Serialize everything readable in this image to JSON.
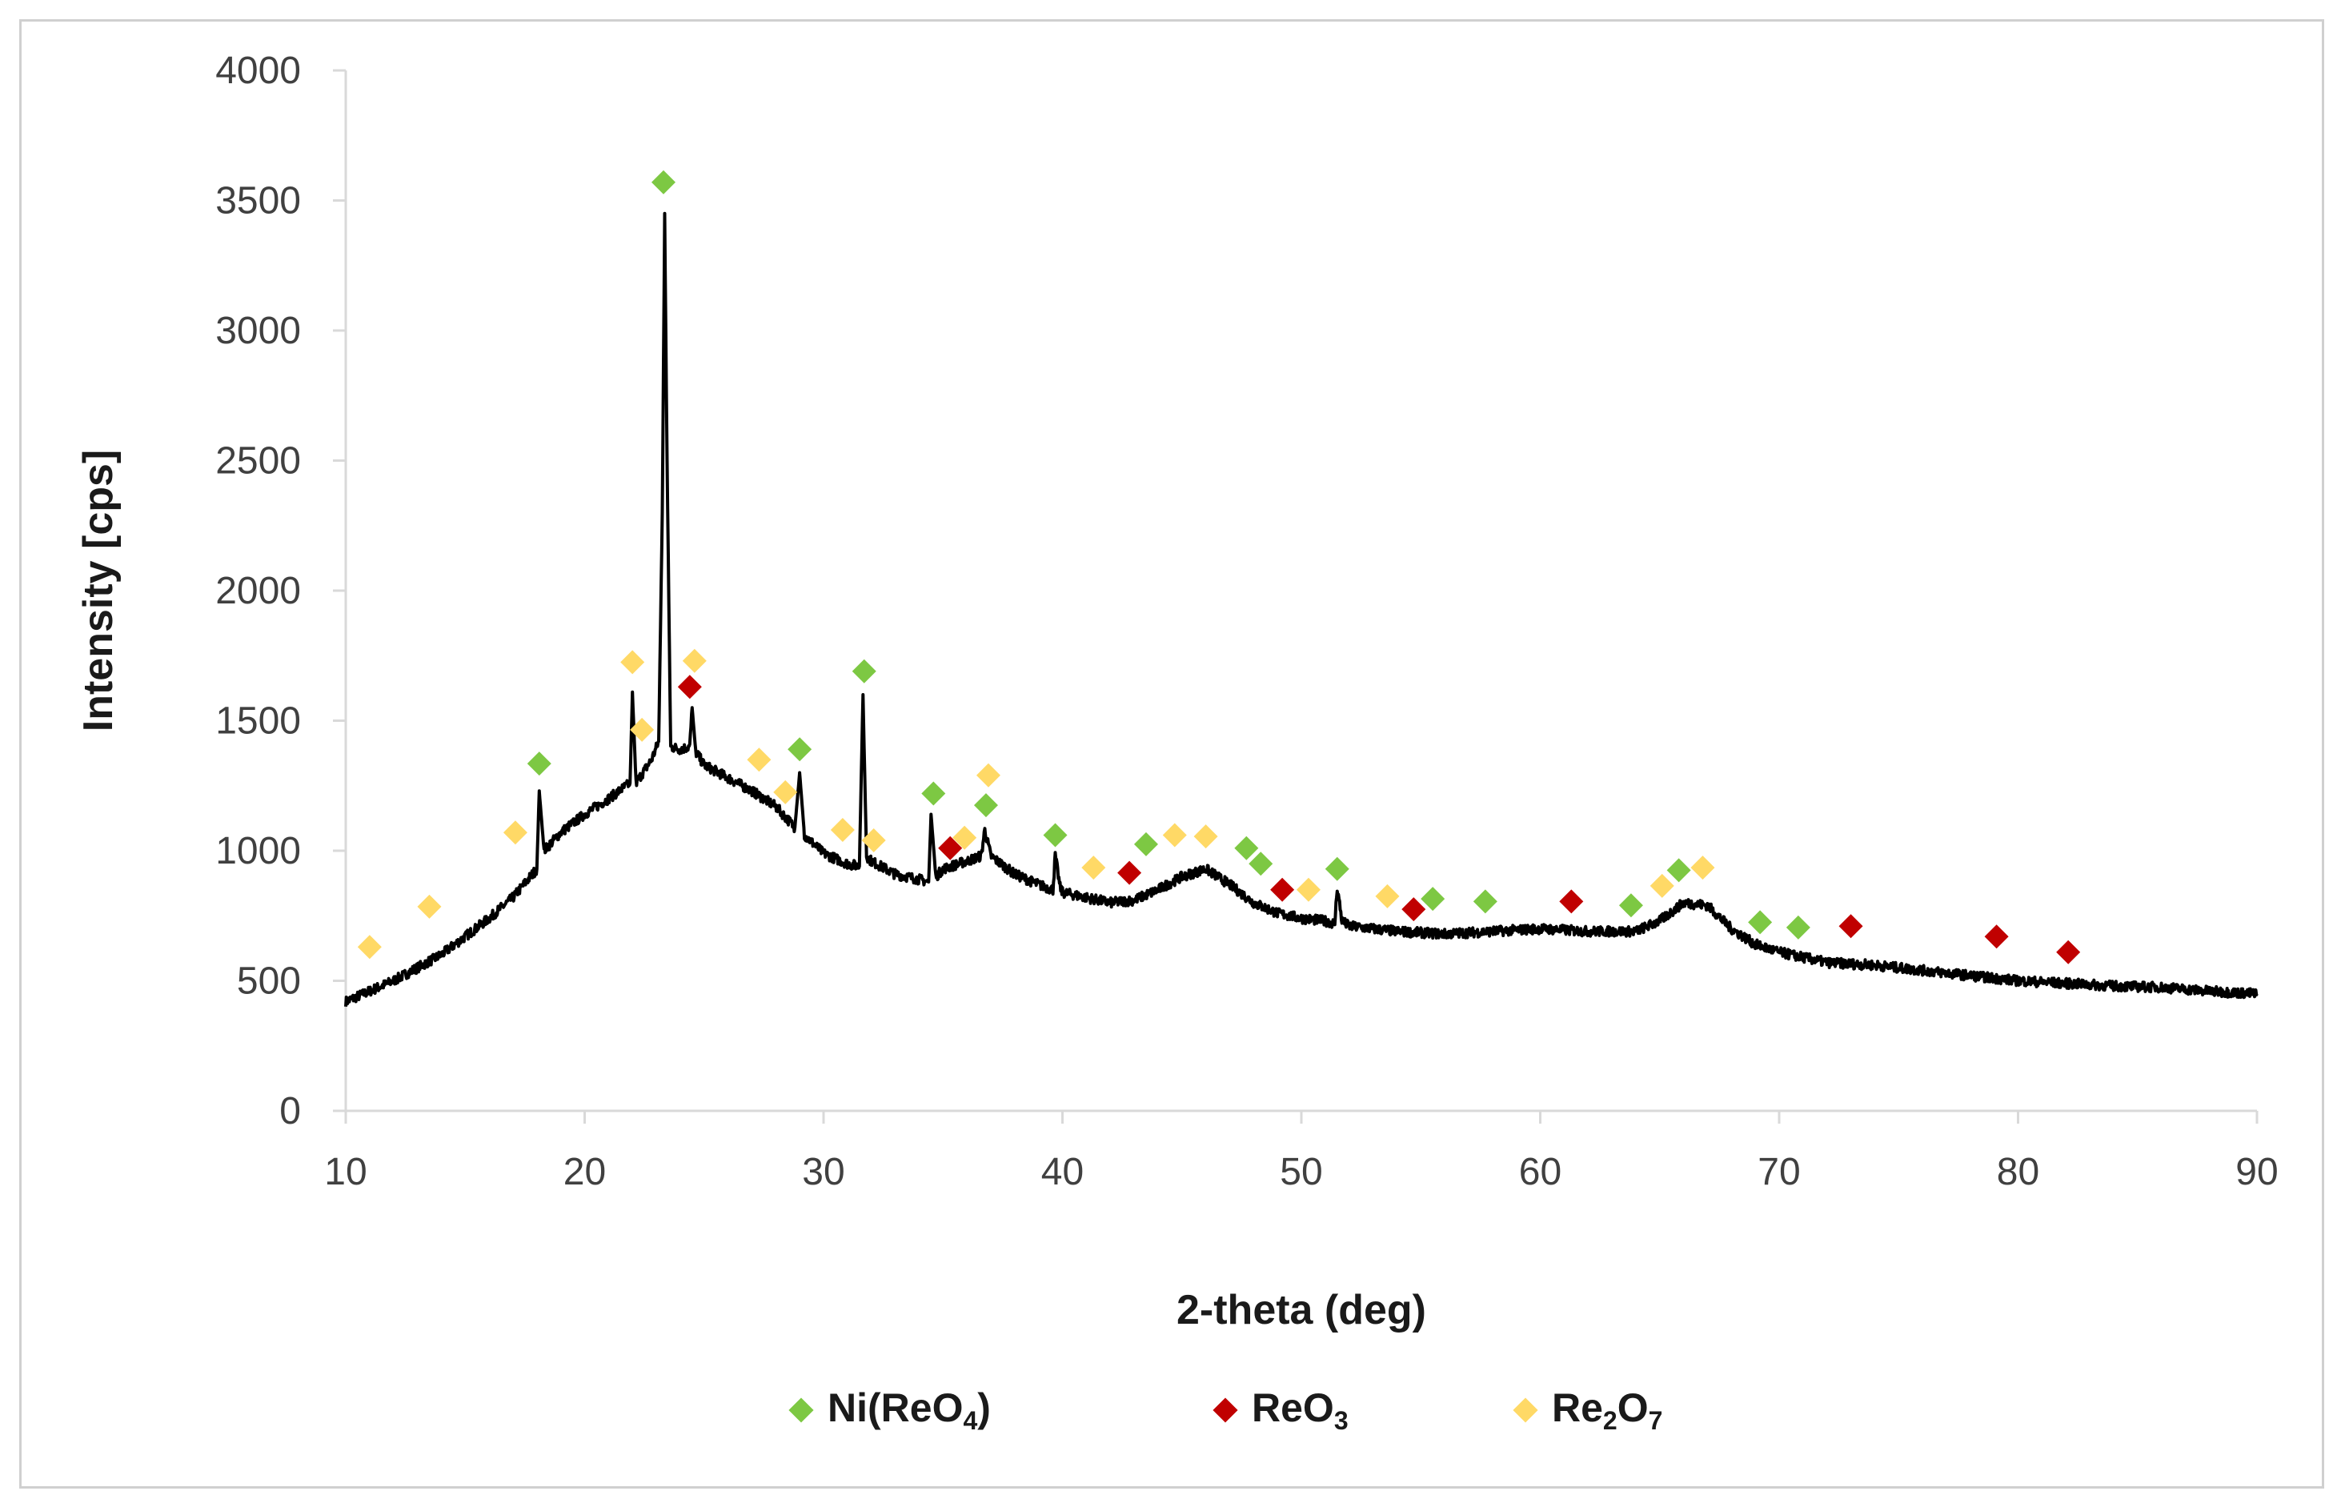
{
  "chart_data": {
    "type": "scatter",
    "xlabel": "2-theta (deg)",
    "ylabel": "Intensity [cps]",
    "xlim": [
      10,
      90
    ],
    "ylim": [
      0,
      4000
    ],
    "x_ticks": [
      "10",
      "20",
      "30",
      "40",
      "50",
      "60",
      "70",
      "80",
      "90"
    ],
    "y_ticks": [
      "0",
      "500",
      "1000",
      "1500",
      "2000",
      "2500",
      "3000",
      "3500",
      "4000"
    ],
    "grid": false,
    "legend_position": "bottom",
    "pattern": {
      "color": "#000000",
      "points": [
        [
          10,
          420
        ],
        [
          11,
          460
        ],
        [
          12,
          500
        ],
        [
          13,
          550
        ],
        [
          14,
          600
        ],
        [
          15,
          670
        ],
        [
          16,
          740
        ],
        [
          17,
          820
        ],
        [
          18,
          930
        ],
        [
          18.1,
          1230
        ],
        [
          18.3,
          1000
        ],
        [
          19,
          1070
        ],
        [
          20,
          1140
        ],
        [
          21,
          1200
        ],
        [
          21.9,
          1260
        ],
        [
          22,
          1610
        ],
        [
          22.15,
          1260
        ],
        [
          22.8,
          1350
        ],
        [
          23.1,
          1420
        ],
        [
          23.25,
          2300
        ],
        [
          23.35,
          3450
        ],
        [
          23.45,
          2500
        ],
        [
          23.6,
          1400
        ],
        [
          24,
          1390
        ],
        [
          24.4,
          1400
        ],
        [
          24.5,
          1550
        ],
        [
          24.65,
          1380
        ],
        [
          25,
          1330
        ],
        [
          26,
          1280
        ],
        [
          27,
          1230
        ],
        [
          28,
          1170
        ],
        [
          28.8,
          1090
        ],
        [
          29,
          1300
        ],
        [
          29.2,
          1060
        ],
        [
          30,
          990
        ],
        [
          31,
          950
        ],
        [
          31.5,
          940
        ],
        [
          31.65,
          1600
        ],
        [
          31.8,
          980
        ],
        [
          32,
          960
        ],
        [
          33,
          910
        ],
        [
          34,
          890
        ],
        [
          34.4,
          880
        ],
        [
          34.5,
          1140
        ],
        [
          34.7,
          900
        ],
        [
          35,
          930
        ],
        [
          36,
          960
        ],
        [
          36.6,
          980
        ],
        [
          36.75,
          1080
        ],
        [
          37,
          980
        ],
        [
          38,
          910
        ],
        [
          39,
          870
        ],
        [
          39.6,
          850
        ],
        [
          39.7,
          980
        ],
        [
          39.9,
          860
        ],
        [
          40,
          840
        ],
        [
          41,
          820
        ],
        [
          42,
          800
        ],
        [
          43,
          810
        ],
        [
          44,
          850
        ],
        [
          45,
          900
        ],
        [
          46,
          930
        ],
        [
          47,
          870
        ],
        [
          48,
          800
        ],
        [
          49,
          760
        ],
        [
          50,
          740
        ],
        [
          51,
          730
        ],
        [
          51.4,
          720
        ],
        [
          51.5,
          860
        ],
        [
          51.7,
          730
        ],
        [
          52,
          710
        ],
        [
          54,
          690
        ],
        [
          56,
          680
        ],
        [
          58,
          690
        ],
        [
          60,
          700
        ],
        [
          62,
          690
        ],
        [
          64,
          690
        ],
        [
          65,
          730
        ],
        [
          66,
          800
        ],
        [
          67,
          790
        ],
        [
          68,
          700
        ],
        [
          69,
          640
        ],
        [
          70,
          610
        ],
        [
          72,
          570
        ],
        [
          74,
          560
        ],
        [
          76,
          540
        ],
        [
          78,
          520
        ],
        [
          80,
          500
        ],
        [
          82,
          490
        ],
        [
          84,
          480
        ],
        [
          86,
          475
        ],
        [
          88,
          460
        ],
        [
          90,
          450
        ]
      ]
    },
    "series": [
      {
        "name": "Ni(ReO4)",
        "color": "#7dc843",
        "points": [
          [
            18.1,
            1335
          ],
          [
            23.3,
            3570
          ],
          [
            29,
            1390
          ],
          [
            31.7,
            1690
          ],
          [
            34.6,
            1220
          ],
          [
            36.8,
            1175
          ],
          [
            39.7,
            1060
          ],
          [
            43.5,
            1025
          ],
          [
            47.7,
            1010
          ],
          [
            48.3,
            950
          ],
          [
            51.5,
            930
          ],
          [
            55.5,
            815
          ],
          [
            57.7,
            805
          ],
          [
            63.8,
            790
          ],
          [
            65.8,
            925
          ],
          [
            69.2,
            725
          ],
          [
            70.8,
            705
          ]
        ]
      },
      {
        "name": "ReO3",
        "color": "#c00000",
        "points": [
          [
            24.4,
            1630
          ],
          [
            35.3,
            1010
          ],
          [
            42.8,
            915
          ],
          [
            49.2,
            850
          ],
          [
            54.7,
            775
          ],
          [
            61.3,
            805
          ],
          [
            73,
            710
          ],
          [
            79.1,
            670
          ],
          [
            82.1,
            610
          ]
        ]
      },
      {
        "name": "Re2O7",
        "color": "#ffd966",
        "points": [
          [
            11,
            630
          ],
          [
            13.5,
            785
          ],
          [
            17.1,
            1070
          ],
          [
            22,
            1725
          ],
          [
            22.4,
            1465
          ],
          [
            24.6,
            1730
          ],
          [
            27.3,
            1350
          ],
          [
            28.4,
            1225
          ],
          [
            30.8,
            1080
          ],
          [
            32.1,
            1040
          ],
          [
            35.9,
            1050
          ],
          [
            36.9,
            1290
          ],
          [
            41.3,
            935
          ],
          [
            44.7,
            1060
          ],
          [
            46,
            1055
          ],
          [
            50.3,
            850
          ],
          [
            53.6,
            825
          ],
          [
            65.1,
            865
          ],
          [
            66.8,
            935
          ]
        ]
      }
    ]
  },
  "legend": {
    "items": [
      {
        "base": "Ni(ReO",
        "sub1": "4",
        "mid": ")",
        "sub2": "",
        "color": "#7dc843"
      },
      {
        "base": "ReO",
        "sub1": "3",
        "mid": "",
        "sub2": "",
        "color": "#c00000"
      },
      {
        "base": "Re",
        "sub1": "2",
        "mid": "O",
        "sub2": "7",
        "color": "#ffd966"
      }
    ]
  }
}
